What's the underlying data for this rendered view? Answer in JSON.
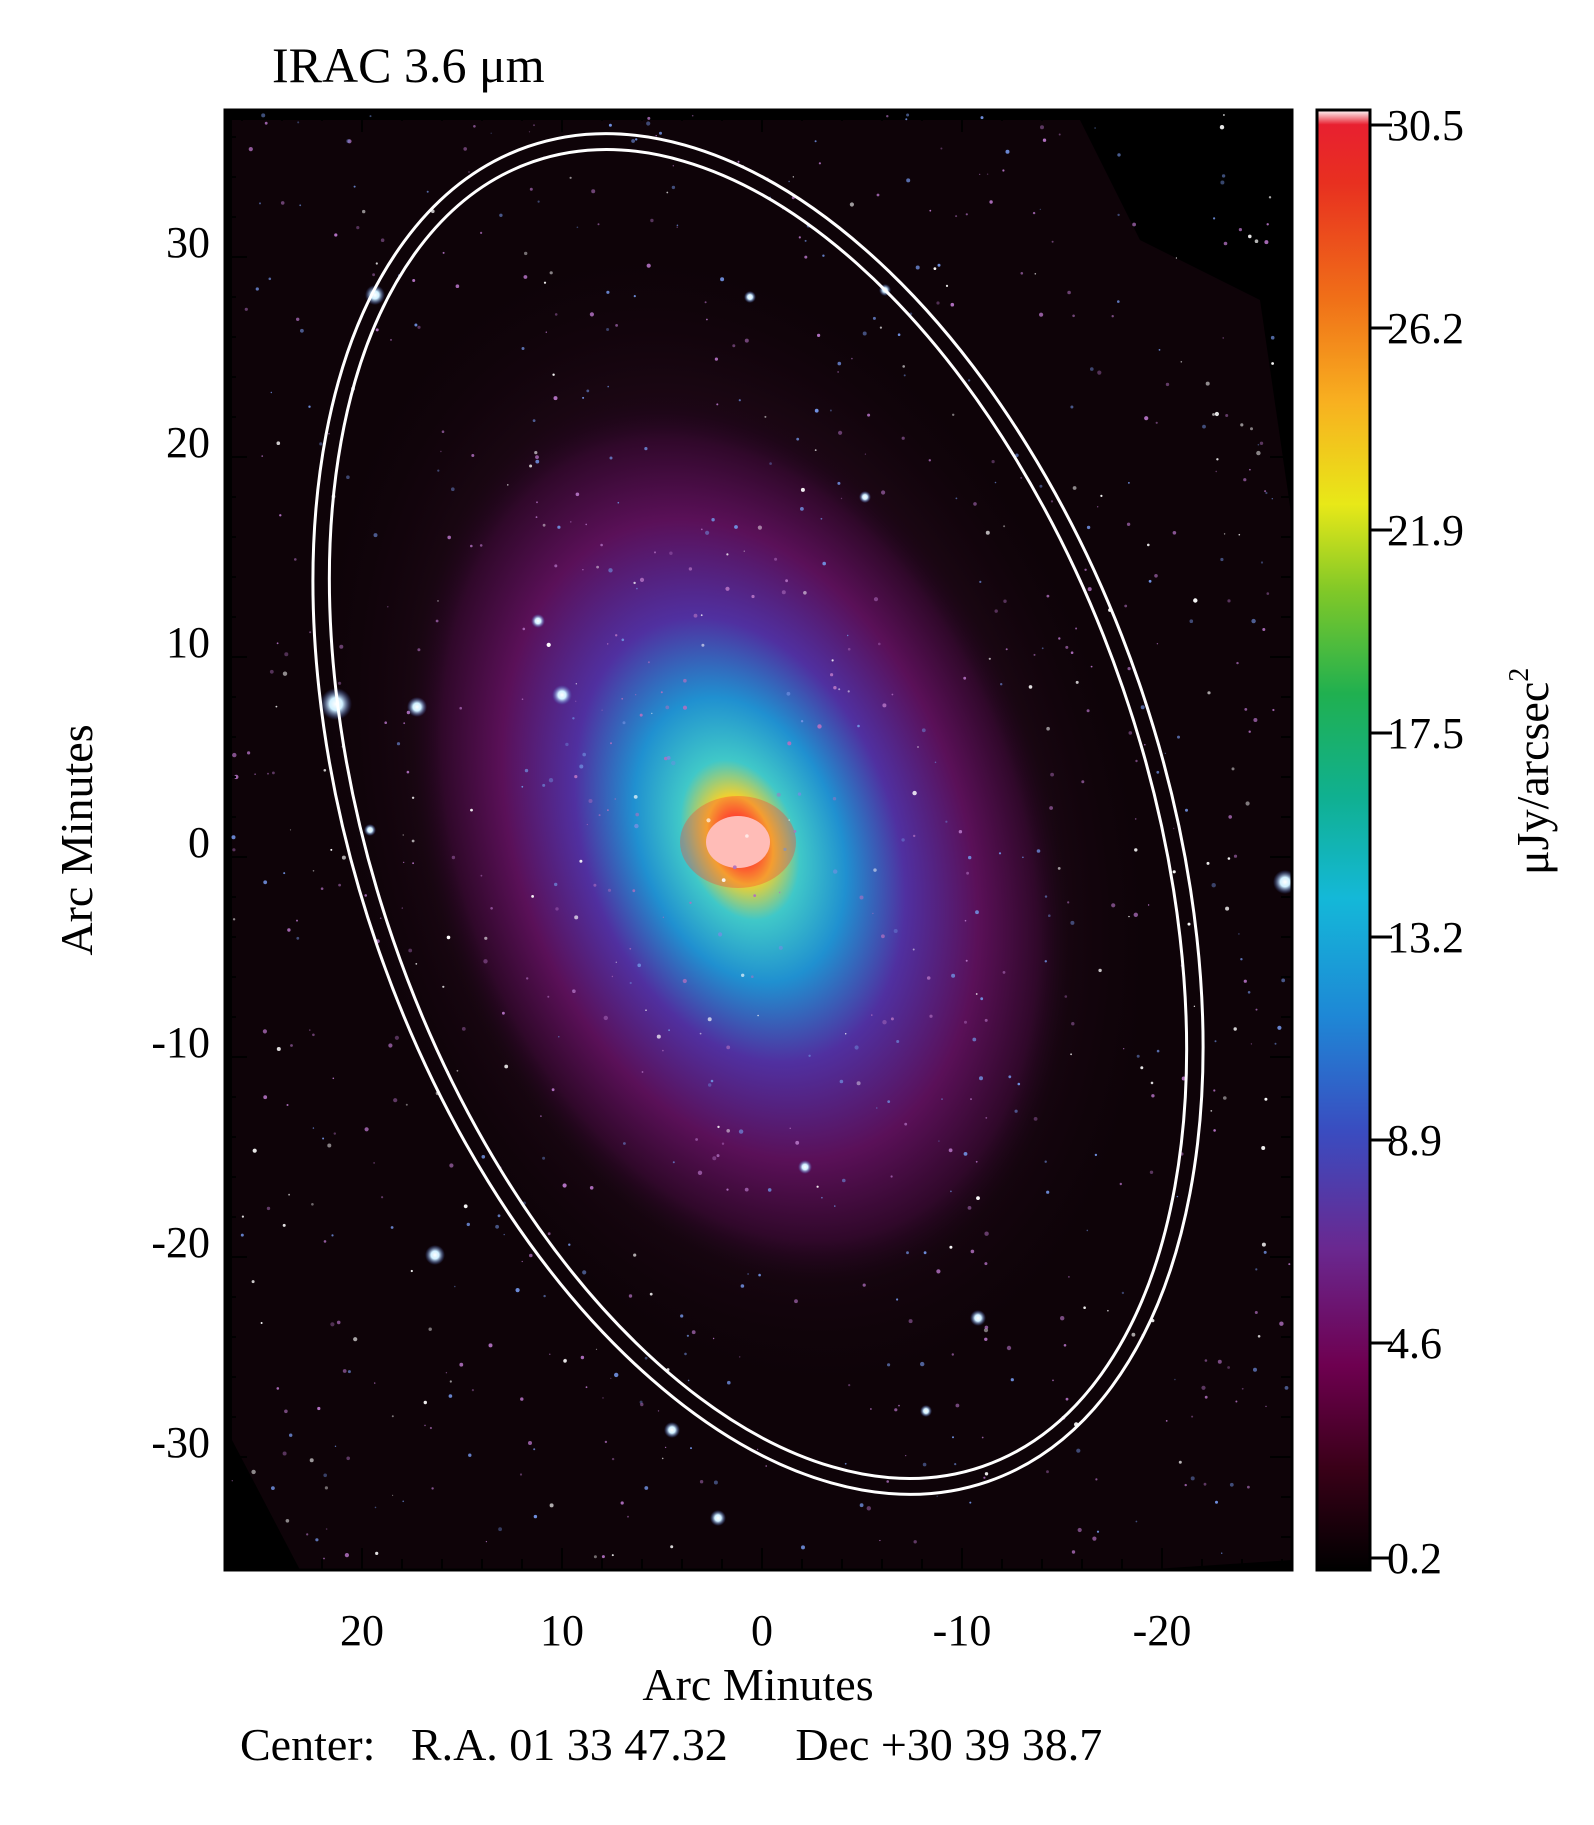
{
  "title": "IRAC 3.6 μm",
  "xlabel": "Arc Minutes",
  "ylabel": "Arc Minutes",
  "xticks": [
    "20",
    "10",
    "0",
    "-10",
    "-20"
  ],
  "yticks": [
    "30",
    "20",
    "10",
    "0",
    "-10",
    "-20",
    "-30"
  ],
  "colorbar": {
    "label_main": "μJy/arcsec",
    "label_sup": "2",
    "ticks": [
      "30.5",
      "26.2",
      "21.9",
      "17.5",
      "13.2",
      "8.9",
      "4.6",
      "0.2"
    ],
    "colors": [
      "#000000",
      "#3a0018",
      "#6e0050",
      "#6a2890",
      "#3a4cc0",
      "#1e88d6",
      "#14b8d8",
      "#10b090",
      "#20b050",
      "#80c828",
      "#e8e818",
      "#f8b020",
      "#f07018",
      "#e83020",
      "#ffffff"
    ]
  },
  "caption": {
    "center": "Center:",
    "ra": "R.A. 01 33 47.32",
    "dec": "Dec  +30 39 38.7"
  },
  "image": {
    "description_colors": [
      "#000000",
      "#2a0a22",
      "#5a1460",
      "#4a3aa0",
      "#1a8ad0",
      "#38d0c8",
      "#e8e040",
      "#ff5030",
      "#ffffff"
    ]
  }
}
